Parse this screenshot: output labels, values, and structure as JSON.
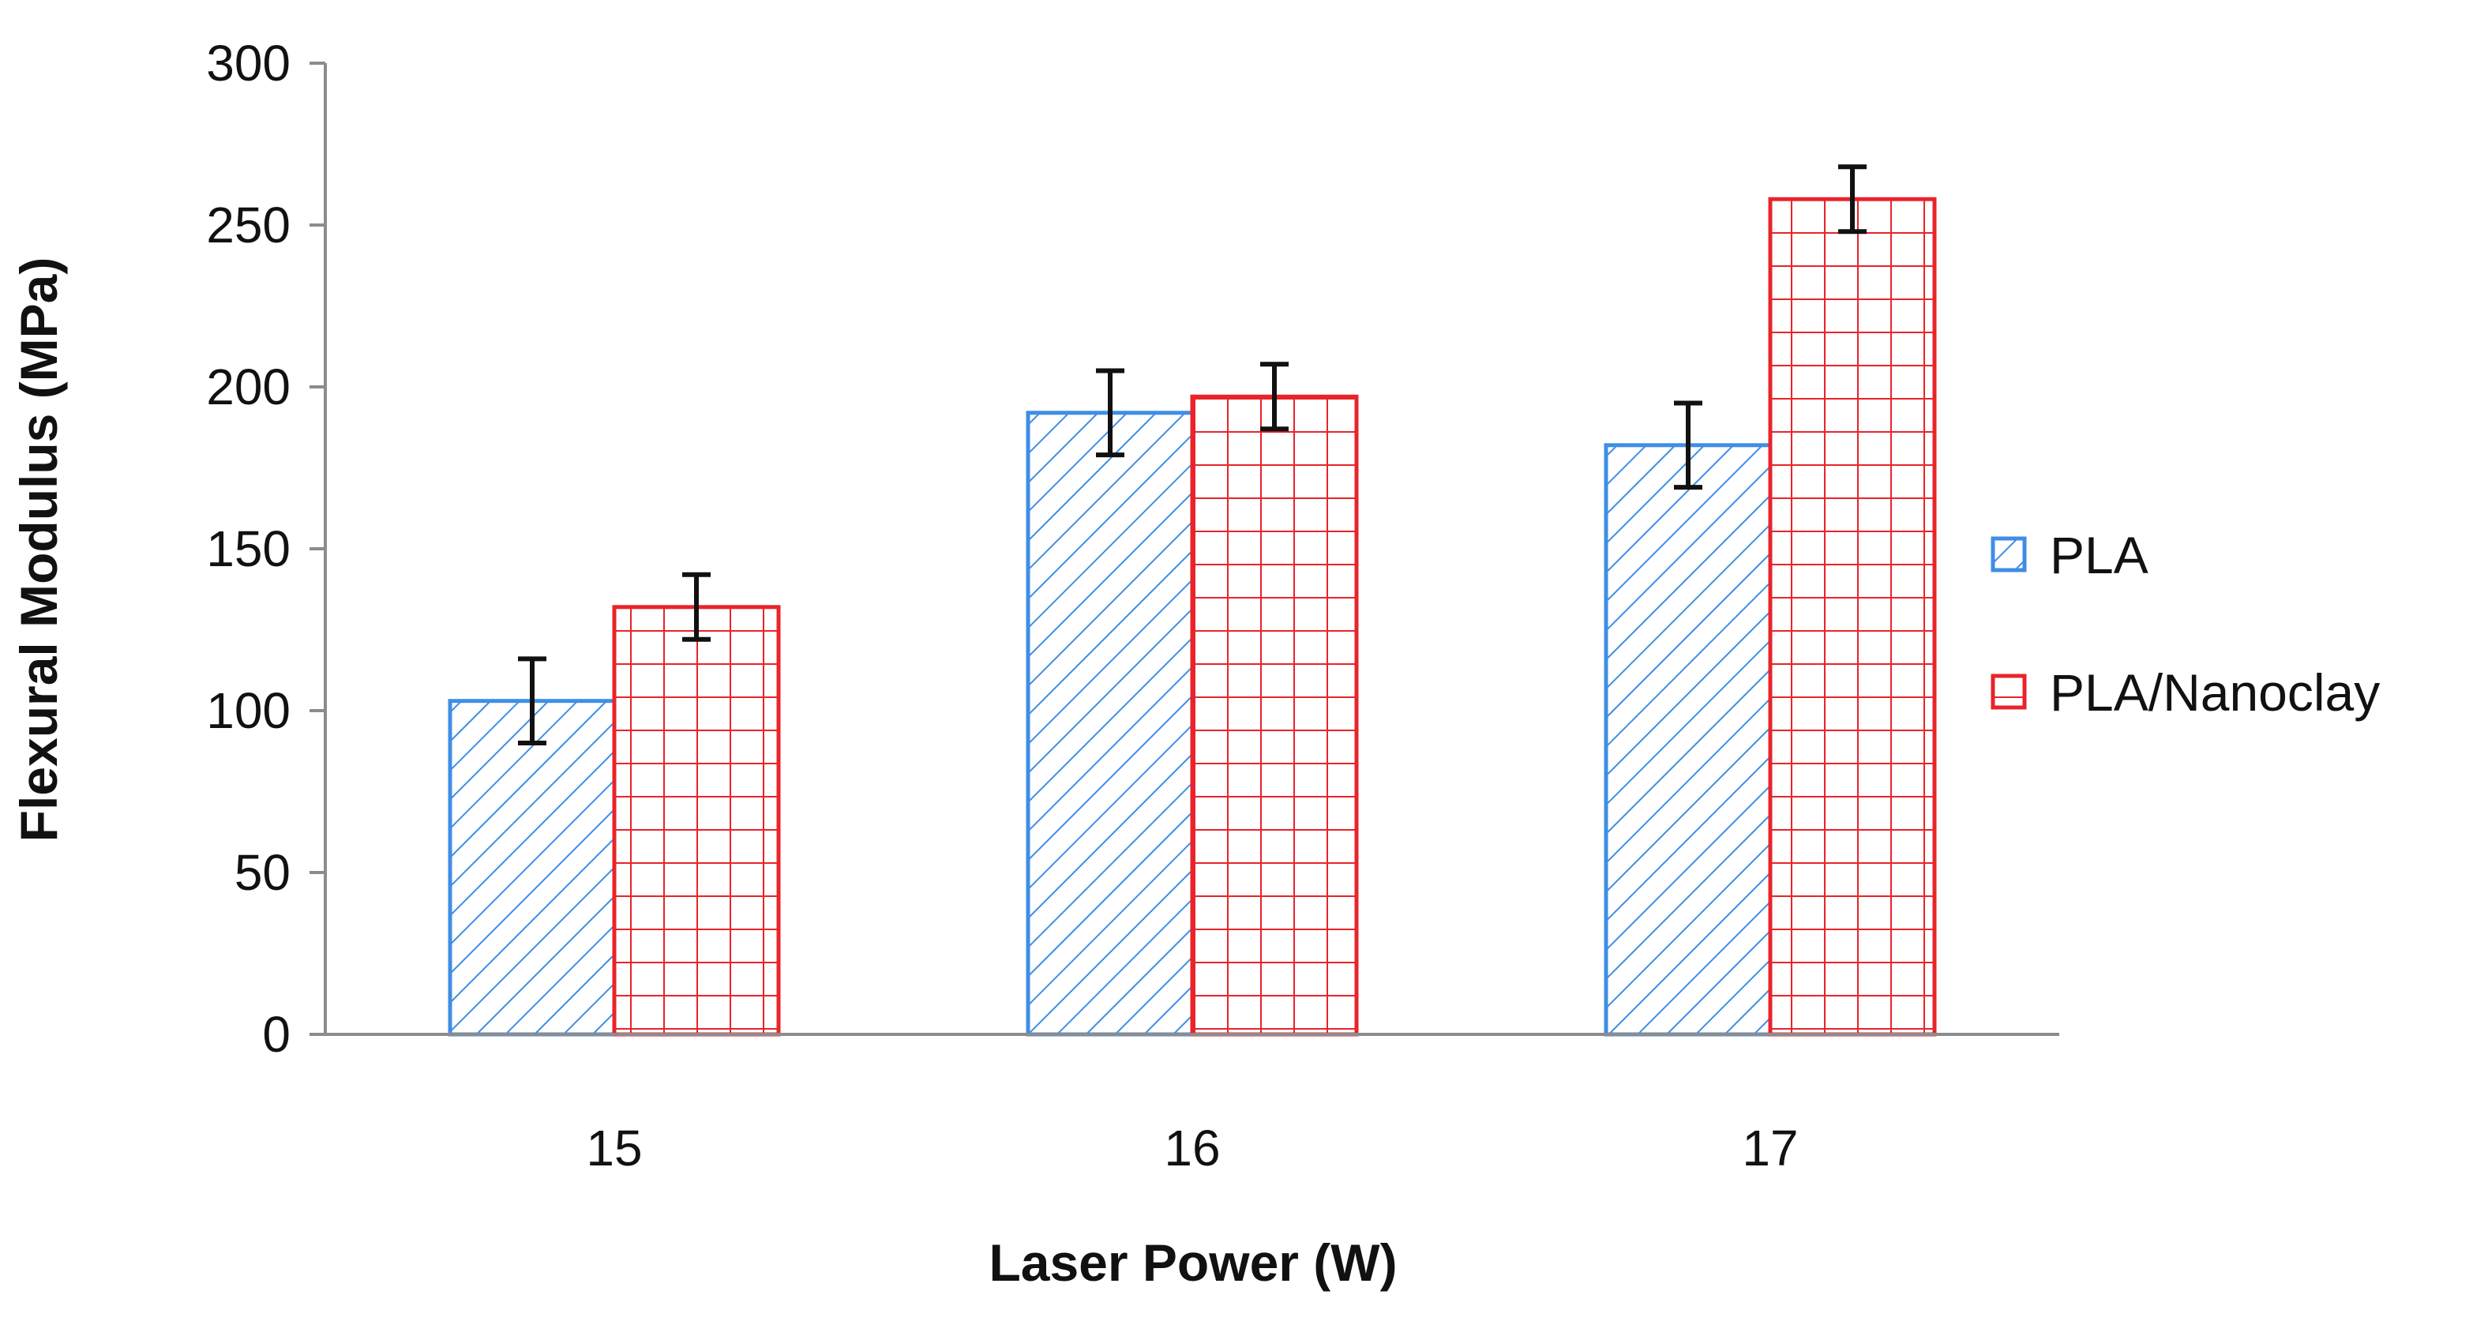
{
  "chart_data": {
    "type": "bar",
    "title": "",
    "xlabel": "Laser Power (W)",
    "ylabel": "Flexural Modulus (MPa)",
    "categories": [
      "15",
      "16",
      "17"
    ],
    "ylim": [
      0,
      300
    ],
    "yticks": [
      0,
      50,
      100,
      150,
      200,
      250,
      300
    ],
    "grid": false,
    "legend_position": "right",
    "series": [
      {
        "name": "PLA",
        "color": "#3f8ee6",
        "pattern": "diagonal-hatch",
        "values": [
          103,
          192,
          182
        ],
        "errors": [
          13,
          13,
          13
        ]
      },
      {
        "name": "PLA/Nanoclay",
        "color": "#e8242a",
        "pattern": "grid",
        "values": [
          132,
          197,
          258
        ],
        "errors": [
          10,
          10,
          10
        ]
      }
    ]
  }
}
